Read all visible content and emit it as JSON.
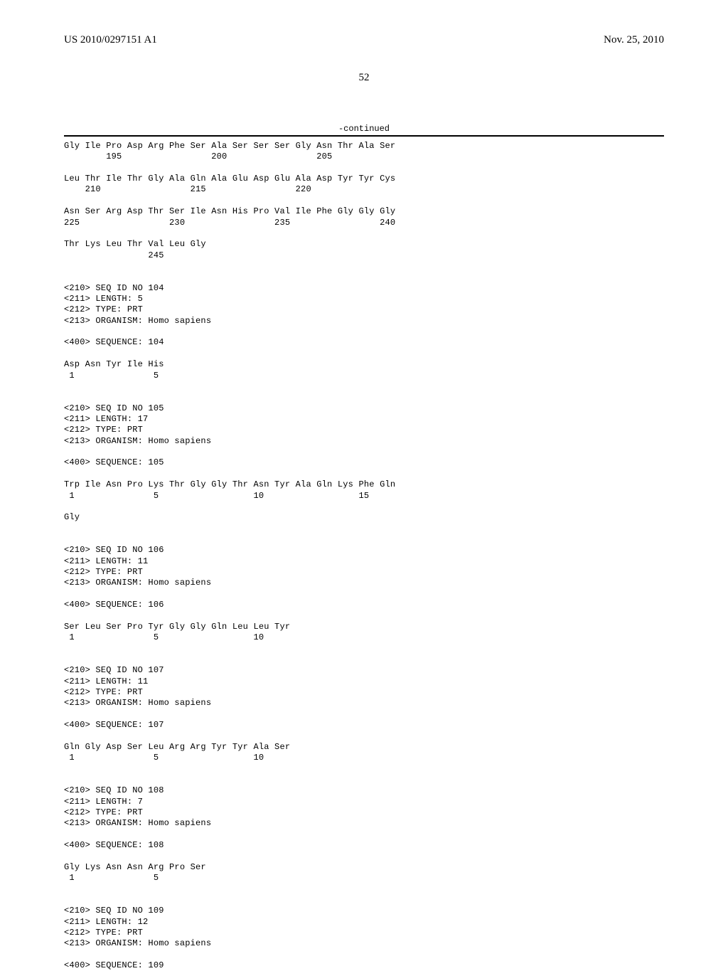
{
  "header": {
    "pub_number": "US 2010/0297151 A1",
    "pub_date": "Nov. 25, 2010"
  },
  "page_number": "52",
  "continued_label": "-continued",
  "blocks": [
    {
      "lines": [
        "Gly Ile Pro Asp Arg Phe Ser Ala Ser Ser Ser Gly Asn Thr Ala Ser",
        "        195                 200                 205"
      ]
    },
    {
      "lines": [
        "Leu Thr Ile Thr Gly Ala Gln Ala Glu Asp Glu Ala Asp Tyr Tyr Cys",
        "    210                 215                 220"
      ]
    },
    {
      "lines": [
        "Asn Ser Arg Asp Thr Ser Ile Asn His Pro Val Ile Phe Gly Gly Gly",
        "225                 230                 235                 240"
      ]
    },
    {
      "lines": [
        "Thr Lys Leu Thr Val Leu Gly",
        "                245"
      ]
    },
    {
      "lines": [
        "",
        "<210> SEQ ID NO 104",
        "<211> LENGTH: 5",
        "<212> TYPE: PRT",
        "<213> ORGANISM: Homo sapiens",
        "",
        "<400> SEQUENCE: 104",
        "",
        "Asp Asn Tyr Ile His",
        " 1               5"
      ]
    },
    {
      "lines": [
        "",
        "<210> SEQ ID NO 105",
        "<211> LENGTH: 17",
        "<212> TYPE: PRT",
        "<213> ORGANISM: Homo sapiens",
        "",
        "<400> SEQUENCE: 105",
        "",
        "Trp Ile Asn Pro Lys Thr Gly Gly Thr Asn Tyr Ala Gln Lys Phe Gln",
        " 1               5                  10                  15",
        "",
        "Gly"
      ]
    },
    {
      "lines": [
        "",
        "<210> SEQ ID NO 106",
        "<211> LENGTH: 11",
        "<212> TYPE: PRT",
        "<213> ORGANISM: Homo sapiens",
        "",
        "<400> SEQUENCE: 106",
        "",
        "Ser Leu Ser Pro Tyr Gly Gly Gln Leu Leu Tyr",
        " 1               5                  10"
      ]
    },
    {
      "lines": [
        "",
        "<210> SEQ ID NO 107",
        "<211> LENGTH: 11",
        "<212> TYPE: PRT",
        "<213> ORGANISM: Homo sapiens",
        "",
        "<400> SEQUENCE: 107",
        "",
        "Gln Gly Asp Ser Leu Arg Arg Tyr Tyr Ala Ser",
        " 1               5                  10"
      ]
    },
    {
      "lines": [
        "",
        "<210> SEQ ID NO 108",
        "<211> LENGTH: 7",
        "<212> TYPE: PRT",
        "<213> ORGANISM: Homo sapiens",
        "",
        "<400> SEQUENCE: 108",
        "",
        "Gly Lys Asn Asn Arg Pro Ser",
        " 1               5"
      ]
    },
    {
      "lines": [
        "",
        "<210> SEQ ID NO 109",
        "<211> LENGTH: 12",
        "<212> TYPE: PRT",
        "<213> ORGANISM: Homo sapiens",
        "",
        "<400> SEQUENCE: 109"
      ]
    }
  ]
}
